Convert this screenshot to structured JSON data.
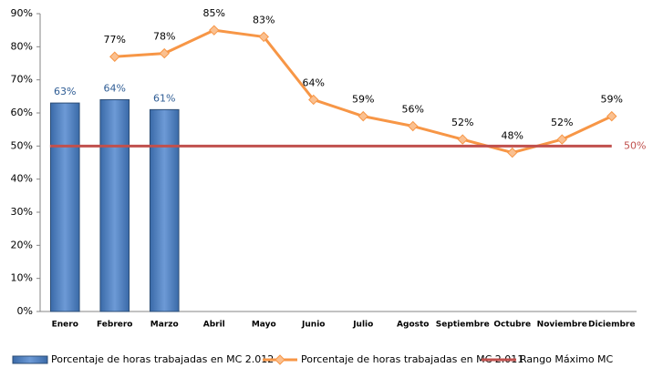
{
  "chart_data": {
    "type": "bar_line",
    "categories": [
      "Enero",
      "Febrero",
      "Marzo",
      "Abril",
      "Mayo",
      "Junio",
      "Julio",
      "Agosto",
      "Septiembre",
      "Octubre",
      "Noviembre",
      "Diciembre"
    ],
    "series": [
      {
        "name": "Porcentaje de horas trabajadas en MC 2.012",
        "type": "bar",
        "color": "#4f81bd",
        "values": [
          63,
          64,
          61,
          null,
          null,
          null,
          null,
          null,
          null,
          null,
          null,
          null
        ],
        "value_labels": [
          "63%",
          "64%",
          "61%",
          null,
          null,
          null,
          null,
          null,
          null,
          null,
          null,
          null
        ]
      },
      {
        "name": "Porcentaje de horas trabajadas en MC 2.011",
        "type": "line",
        "color": "#f79646",
        "values": [
          null,
          77,
          78,
          85,
          83,
          64,
          59,
          56,
          52,
          48,
          52,
          59
        ],
        "value_labels": [
          null,
          "77%",
          "78%",
          "85%",
          "83%",
          "64%",
          "59%",
          "56%",
          "52%",
          "48%",
          "52%",
          "59%"
        ]
      },
      {
        "name": "Rango Máximo MC",
        "type": "line",
        "color": "#c0504d",
        "values": [
          50,
          50,
          50,
          50,
          50,
          50,
          50,
          50,
          50,
          50,
          50,
          50
        ],
        "value_labels": [
          null,
          null,
          null,
          null,
          null,
          null,
          null,
          null,
          null,
          null,
          null,
          "50%"
        ]
      }
    ],
    "ylim": [
      0,
      90
    ],
    "yticks": [
      {
        "value": 0,
        "label": "0%"
      },
      {
        "value": 10,
        "label": "10%"
      },
      {
        "value": 20,
        "label": "20%"
      },
      {
        "value": 30,
        "label": "30%"
      },
      {
        "value": 40,
        "label": "40%"
      },
      {
        "value": 50,
        "label": "50%"
      },
      {
        "value": 60,
        "label": "60%"
      },
      {
        "value": 70,
        "label": "70%"
      },
      {
        "value": 80,
        "label": "80%"
      },
      {
        "value": 90,
        "label": "90%"
      }
    ],
    "grid": false,
    "legend": "bottom"
  }
}
